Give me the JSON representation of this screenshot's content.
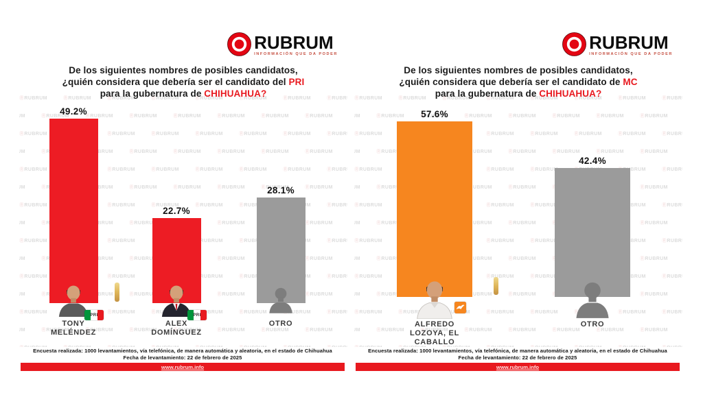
{
  "logo": {
    "name": "RUBRUM",
    "tagline": "INFORMACIÓN QUE DA PODER",
    "brand_red": "#e30613"
  },
  "watermark_text": "RUBRUM",
  "panels": [
    {
      "title": {
        "line1": "De los siguientes nombres de posibles candidatos,",
        "line2_prefix": "¿quién considera que debería ser el candidato del ",
        "line2_highlight": "PRI",
        "line3_prefix": "para la gubernatura de ",
        "line3_highlight": "CHIHUAHUA?"
      },
      "footer": {
        "line1": "Encuesta realizada: 1000 levantamientos, vía telefónica, de manera automática y aleatoria, en el estado de Chihuahua",
        "line2": "Fecha de levantamiento: 22 de febrero de 2025",
        "url": "www.rubrum.info"
      }
    },
    {
      "title": {
        "line1": "De los siguientes nombres de posibles candidatos,",
        "line2_prefix": "¿quién considera que debería ser el candidato de ",
        "line2_highlight": "MC",
        "line3_prefix": "para la gubernatura de ",
        "line3_highlight": "CHIHUAHUA?"
      },
      "footer": {
        "line1": "Encuesta realizada: 1000 levantamientos, vía telefónica, de manera automática y aleatoria, en el estado de Chihuahua",
        "line2": "Fecha de levantamiento: 22 de febrero de 2025",
        "url": "www.rubrum.info"
      }
    }
  ],
  "chart_data": [
    {
      "type": "bar",
      "title": "¿Quién considera que debería ser el candidato del PRI para la gubernatura de Chihuahua?",
      "categories": [
        "TONY MELÉNDEZ",
        "ALEX DOMÍNGUEZ",
        "OTRO"
      ],
      "values": [
        49.2,
        22.7,
        28.1
      ],
      "value_labels": [
        "49.2%",
        "22.7%",
        "28.1%"
      ],
      "bar_colors": [
        "#ed1c24",
        "#ed1c24",
        "#9b9b9b"
      ],
      "name_lines": [
        [
          "TONY",
          "MELÉNDEZ"
        ],
        [
          "ALEX",
          "DOMÍNGUEZ"
        ],
        [
          "OTRO"
        ]
      ],
      "avatars": [
        "photo-man-tshirt",
        "photo-man-suit",
        "person-silhouette"
      ],
      "badges": [
        {
          "type": "pri",
          "label": "PRI"
        },
        {
          "type": "pri",
          "label": "PRI"
        },
        null
      ],
      "xlabel": "",
      "ylabel": "",
      "ylim": [
        0,
        55
      ],
      "grid": false,
      "legend": false,
      "value_format": "percent"
    },
    {
      "type": "bar",
      "title": "¿Quién considera que debería ser el candidato de MC para la gubernatura de Chihuahua?",
      "categories": [
        "ALFREDO LOZOYA, EL CABALLO",
        "OTRO"
      ],
      "values": [
        57.6,
        42.4
      ],
      "value_labels": [
        "57.6%",
        "42.4%"
      ],
      "bar_colors": [
        "#f6861f",
        "#9b9b9b"
      ],
      "name_lines": [
        [
          "ALFREDO",
          "LOZOYA, EL",
          "CABALLO"
        ],
        [
          "OTRO"
        ]
      ],
      "avatars": [
        "photo-man-shirt",
        "person-silhouette"
      ],
      "badges": [
        {
          "type": "mc",
          "label": "MC"
        },
        null
      ],
      "xlabel": "",
      "ylabel": "",
      "ylim": [
        0,
        65
      ],
      "grid": false,
      "legend": false,
      "value_format": "percent"
    }
  ]
}
